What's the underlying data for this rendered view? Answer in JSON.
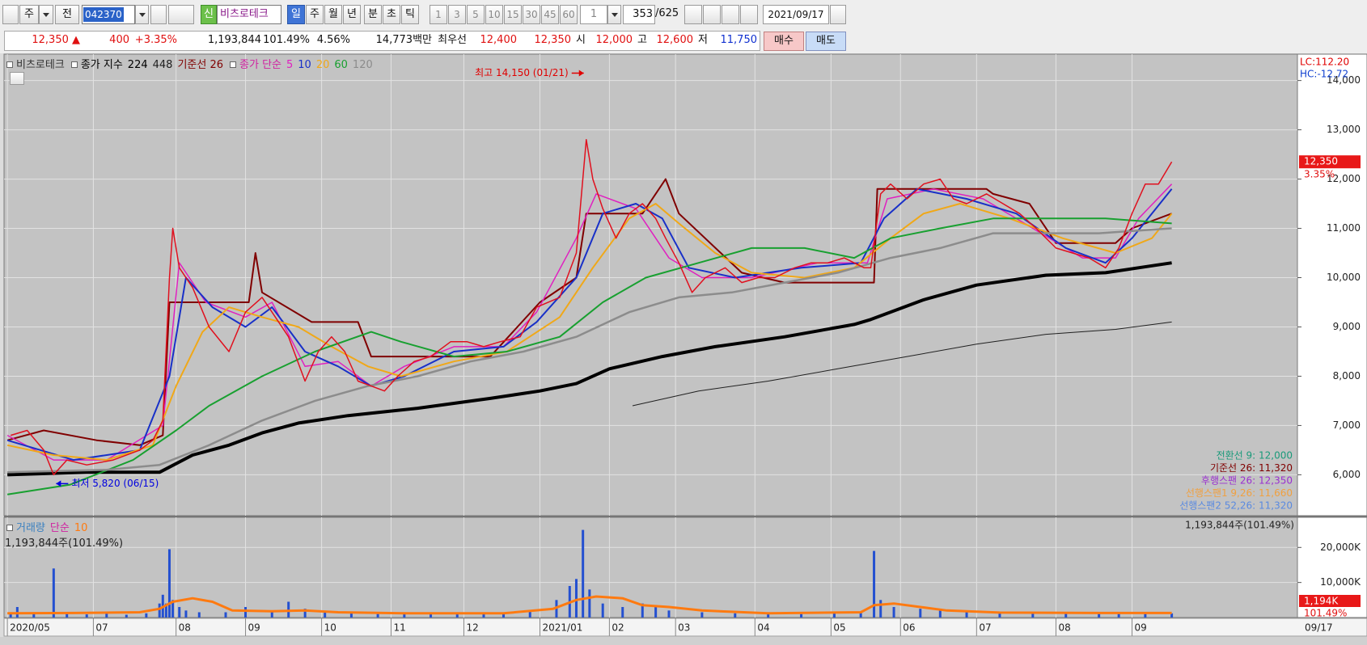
{
  "toolbar": {
    "market": "주",
    "prev": "전",
    "code": "042370",
    "new_badge": "신",
    "name": "비츠로테크",
    "units": [
      "일",
      "주",
      "월",
      "년",
      "분",
      "초",
      "틱"
    ],
    "periods": [
      "1",
      "3",
      "5",
      "10",
      "15",
      "30",
      "45",
      "60"
    ],
    "period_select": "1",
    "count": "353",
    "total": "/625",
    "date": "2021/09/17"
  },
  "info_bar": {
    "price": "12,350 ▲",
    "change": "400",
    "change_pct": "+3.35%",
    "volume": "1,193,844",
    "volume_ratio": "101.49%",
    "turnover": "4.56%",
    "amount": "14,773백만",
    "best_label": "최우선",
    "ask": "12,400",
    "bid": "12,350",
    "open_label": "시",
    "open": "12,000",
    "high_label": "고",
    "high": "12,600",
    "low_label": "저",
    "low": "11,750",
    "buy": "매수",
    "sell": "매도"
  },
  "chart_data": [
    {
      "type": "line",
      "title": "비츠로테크",
      "legend_groups": [
        "종가 지수",
        "종가 단순"
      ],
      "xlim": [
        -1,
        390
      ],
      "ylim": [
        5170,
        14535
      ],
      "grid": true,
      "yticks": [
        {
          "value": 6000,
          "label": "6,000"
        },
        {
          "value": 7000,
          "label": "7,000"
        },
        {
          "value": 8000,
          "label": "8,000"
        },
        {
          "value": 9000,
          "label": "9,000"
        },
        {
          "value": 10000,
          "label": "10,000"
        },
        {
          "value": 11000,
          "label": "11,000"
        },
        {
          "value": 12000,
          "label": "12,000"
        },
        {
          "value": 13000,
          "label": "13,000"
        },
        {
          "value": 14000,
          "label": "14,000"
        }
      ],
      "series": [
        {
          "name": "224",
          "color": "#000000",
          "width": 4,
          "x": [
            0,
            24,
            46,
            56,
            67,
            77,
            88,
            103,
            124,
            146,
            161,
            172,
            182,
            198,
            214,
            235,
            256,
            261,
            277,
            293,
            314,
            332,
            352
          ],
          "values": [
            6000,
            6050,
            6050,
            6400,
            6600,
            6850,
            7050,
            7200,
            7350,
            7550,
            7700,
            7850,
            8150,
            8400,
            8600,
            8800,
            9050,
            9150,
            9550,
            9850,
            10050,
            10100,
            10300
          ]
        },
        {
          "name": "448",
          "color": "#202020",
          "width": 1,
          "x": [
            189,
            209,
            230,
            251,
            272,
            293,
            314,
            335,
            352
          ],
          "values": [
            7400,
            7700,
            7900,
            8150,
            8400,
            8650,
            8850,
            8950,
            9100
          ]
        },
        {
          "name": "기준선 26",
          "color": "#800000",
          "width": 2,
          "x": [
            0,
            11,
            27,
            40,
            47,
            49,
            73,
            75,
            77,
            92,
            106,
            110,
            146,
            161,
            172,
            175,
            192,
            199,
            203,
            222,
            235,
            262,
            263,
            296,
            298,
            309,
            317,
            335,
            340,
            352
          ],
          "values": [
            6700,
            6900,
            6700,
            6600,
            6800,
            9500,
            9500,
            10500,
            9700,
            9100,
            9100,
            8400,
            8400,
            9500,
            10000,
            11300,
            11300,
            12000,
            11300,
            10100,
            9900,
            9900,
            11800,
            11800,
            11700,
            11500,
            10700,
            10700,
            11000,
            11300
          ]
        },
        {
          "name": "5",
          "color": "#e020c0",
          "width": 1.5,
          "x": [
            0,
            14,
            30,
            47,
            52,
            60,
            72,
            80,
            90,
            100,
            110,
            120,
            135,
            150,
            160,
            172,
            178,
            190,
            200,
            210,
            225,
            245,
            260,
            266,
            280,
            295,
            310,
            325,
            335,
            342,
            352
          ],
          "values": [
            6800,
            6300,
            6300,
            7000,
            10300,
            9500,
            9200,
            9500,
            8200,
            8300,
            7800,
            8200,
            8600,
            8600,
            9300,
            10800,
            11700,
            11400,
            10400,
            10000,
            10000,
            10300,
            10300,
            11600,
            11800,
            11600,
            11000,
            10400,
            10400,
            11200,
            11900
          ]
        },
        {
          "name": "10",
          "color": "#1830c8",
          "width": 2,
          "x": [
            0,
            20,
            40,
            49,
            54,
            62,
            72,
            80,
            90,
            100,
            110,
            120,
            135,
            150,
            160,
            172,
            180,
            190,
            198,
            206,
            220,
            240,
            258,
            265,
            275,
            290,
            305,
            320,
            332,
            340,
            352
          ],
          "values": [
            6700,
            6300,
            6500,
            8000,
            10000,
            9400,
            9000,
            9400,
            8500,
            8200,
            7800,
            8000,
            8500,
            8600,
            9100,
            10000,
            11300,
            11500,
            11200,
            10200,
            10000,
            10200,
            10300,
            11200,
            11800,
            11600,
            11300,
            10600,
            10300,
            10800,
            11800
          ]
        },
        {
          "name": "20",
          "color": "#f0a818",
          "width": 2,
          "x": [
            0,
            14,
            30,
            44,
            51,
            59,
            67,
            77,
            88,
            98,
            109,
            119,
            135,
            151,
            167,
            177,
            188,
            196,
            203,
            214,
            225,
            241,
            256,
            267,
            277,
            288,
            303,
            319,
            335,
            346,
            352
          ],
          "values": [
            6600,
            6400,
            6300,
            6600,
            7800,
            8900,
            9400,
            9200,
            9000,
            8600,
            8200,
            8000,
            8300,
            8500,
            9200,
            10200,
            11200,
            11500,
            11100,
            10500,
            10100,
            10000,
            10200,
            10800,
            11300,
            11500,
            11200,
            10800,
            10500,
            10800,
            11300
          ]
        },
        {
          "name": "60",
          "color": "#18a030",
          "width": 2,
          "x": [
            0,
            19,
            38,
            51,
            61,
            77,
            93,
            110,
            119,
            135,
            151,
            167,
            180,
            193,
            209,
            225,
            241,
            256,
            267,
            282,
            298,
            314,
            332,
            352
          ],
          "values": [
            5600,
            5800,
            6300,
            6900,
            7400,
            8000,
            8500,
            8900,
            8700,
            8400,
            8500,
            8800,
            9500,
            10000,
            10300,
            10600,
            10600,
            10400,
            10800,
            11000,
            11200,
            11200,
            11200,
            11100
          ]
        },
        {
          "name": "120",
          "color": "#8c8c8c",
          "width": 2.5,
          "x": [
            0,
            30,
            46,
            61,
            77,
            93,
            109,
            124,
            140,
            156,
            172,
            188,
            203,
            219,
            235,
            251,
            267,
            282,
            298,
            314,
            330,
            352
          ],
          "values": [
            6050,
            6100,
            6200,
            6600,
            7100,
            7500,
            7800,
            8000,
            8300,
            8500,
            8800,
            9300,
            9600,
            9700,
            9900,
            10100,
            10400,
            10600,
            10900,
            10900,
            10900,
            11000
          ]
        },
        {
          "color": "#e0101e",
          "width": 1.5,
          "x": [
            1,
            6,
            11,
            14,
            18,
            24,
            32,
            40,
            44,
            47,
            49,
            50,
            52,
            56,
            61,
            67,
            72,
            77,
            80,
            85,
            90,
            94,
            98,
            102,
            106,
            110,
            114,
            118,
            123,
            128,
            134,
            139,
            144,
            149,
            155,
            160,
            167,
            172,
            175,
            177,
            180,
            184,
            188,
            192,
            196,
            199,
            203,
            207,
            211,
            217,
            222,
            227,
            232,
            238,
            243,
            248,
            253,
            259,
            261,
            264,
            267,
            272,
            277,
            282,
            286,
            290,
            296,
            301,
            306,
            311,
            317,
            322,
            327,
            332,
            336,
            340,
            344,
            348,
            352
          ],
          "values": [
            6800,
            6900,
            6500,
            6000,
            6300,
            6200,
            6300,
            6500,
            6700,
            7100,
            10000,
            11000,
            10200,
            9800,
            9000,
            8500,
            9300,
            9600,
            9300,
            8800,
            7900,
            8500,
            8800,
            8500,
            7900,
            7800,
            7700,
            8000,
            8300,
            8400,
            8700,
            8700,
            8600,
            8700,
            8800,
            9400,
            9600,
            10500,
            12800,
            12000,
            11400,
            10800,
            11300,
            11500,
            11200,
            10800,
            10300,
            9700,
            10000,
            10200,
            9900,
            10000,
            10000,
            10200,
            10300,
            10300,
            10400,
            10200,
            10200,
            11700,
            11900,
            11600,
            11900,
            12000,
            11600,
            11500,
            11700,
            11500,
            11300,
            11000,
            10600,
            10500,
            10400,
            10200,
            10600,
            11300,
            11900,
            11900,
            12350
          ]
        }
      ],
      "annotations": [
        {
          "text": "최고 14,150 (01/21)",
          "x": 175,
          "y": 14150,
          "color": "#e00000"
        },
        {
          "text": "최저 5,820 (06/15)",
          "x": 14,
          "y": 5820,
          "color": "#0000e0"
        }
      ],
      "scale_labels": [
        {
          "text": "LC:112.20",
          "color": "#e00000"
        },
        {
          "text": "HC:-12.72",
          "color": "#1040d0"
        }
      ],
      "last_price_label": "12,350",
      "last_change_label": "3.35%",
      "ichimoku_labels": [
        {
          "text": "전환선 9: 12,000",
          "color": "#1a9a7a"
        },
        {
          "text": "기준선 26: 11,320",
          "color": "#800000"
        },
        {
          "text": "후행스팬 26: 12,350",
          "color": "#9a30d0"
        },
        {
          "text": "선행스팬1 9,26: 11,660",
          "color": "#f0a040"
        },
        {
          "text": "선행스팬2 52,26: 11,320",
          "color": "#5a8ae0"
        }
      ]
    },
    {
      "type": "bar",
      "title": "거래량",
      "legend_group": "단순",
      "color": "#2450d0",
      "xlim": [
        -1,
        390
      ],
      "ylim": [
        0,
        28600
      ],
      "grid": true,
      "yticks": [
        {
          "value": 10000,
          "label": "10,000K"
        },
        {
          "value": 20000,
          "label": "20,000K"
        }
      ],
      "xticks": [
        {
          "value": 0,
          "label": "2020/05"
        },
        {
          "value": 26,
          "label": "07"
        },
        {
          "value": 51,
          "label": "08"
        },
        {
          "value": 72,
          "label": "09"
        },
        {
          "value": 95,
          "label": "10"
        },
        {
          "value": 116,
          "label": "11"
        },
        {
          "value": 138,
          "label": "12"
        },
        {
          "value": 161,
          "label": "2021/01"
        },
        {
          "value": 182,
          "label": "02"
        },
        {
          "value": 202,
          "label": "03"
        },
        {
          "value": 226,
          "label": "04"
        },
        {
          "value": 249,
          "label": "05"
        },
        {
          "value": 270,
          "label": "06"
        },
        {
          "value": 293,
          "label": "07"
        },
        {
          "value": 317,
          "label": "08"
        },
        {
          "value": 340,
          "label": "09"
        }
      ],
      "x_end_label": "09/17",
      "x": [
        1,
        3,
        8,
        14,
        18,
        24,
        30,
        36,
        42,
        46,
        47,
        48,
        49,
        50,
        52,
        54,
        58,
        66,
        72,
        80,
        85,
        90,
        96,
        104,
        112,
        120,
        128,
        136,
        144,
        150,
        158,
        166,
        170,
        172,
        174,
        176,
        180,
        186,
        192,
        196,
        200,
        210,
        220,
        230,
        240,
        250,
        258,
        262,
        264,
        268,
        276,
        282,
        290,
        300,
        310,
        320,
        330,
        336,
        344,
        352
      ],
      "values": [
        1500,
        3000,
        1200,
        14000,
        1000,
        900,
        1500,
        800,
        1200,
        4000,
        6500,
        4000,
        19500,
        5000,
        3000,
        2000,
        1500,
        1500,
        3000,
        2000,
        4500,
        2500,
        1500,
        1200,
        1000,
        1500,
        1200,
        1000,
        1200,
        1000,
        2000,
        5000,
        9000,
        11000,
        25000,
        8000,
        4000,
        3000,
        4000,
        3000,
        2000,
        1500,
        1200,
        1200,
        1000,
        1200,
        1500,
        19000,
        5000,
        3000,
        2500,
        2000,
        1500,
        1200,
        1200,
        1500,
        1500,
        1200,
        1500,
        1194
      ],
      "series": [
        {
          "name": "10",
          "color": "#ff7a10",
          "width": 3,
          "x": [
            0,
            20,
            40,
            46,
            50,
            56,
            62,
            68,
            80,
            90,
            100,
            120,
            150,
            165,
            172,
            178,
            186,
            192,
            200,
            210,
            230,
            258,
            262,
            268,
            276,
            284,
            300,
            330,
            352
          ],
          "values": [
            1200,
            1300,
            1500,
            2500,
            4500,
            5500,
            4500,
            2000,
            1800,
            2000,
            1500,
            1200,
            1200,
            2500,
            5000,
            6000,
            5500,
            3500,
            3000,
            2000,
            1200,
            1500,
            3500,
            4000,
            3000,
            2000,
            1400,
            1300,
            1300
          ]
        }
      ],
      "volume_label": "1,193,844주(101.49%)",
      "last_label": "1,194K",
      "last_pct": "101.49%"
    }
  ]
}
